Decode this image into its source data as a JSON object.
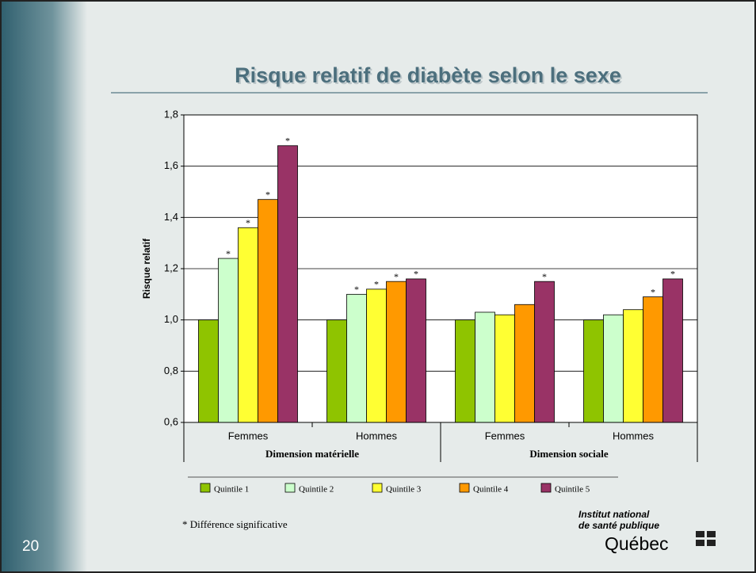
{
  "chart_data": {
    "type": "bar",
    "title": "Risque relatif de diabète selon le sexe",
    "y_label": "Risque relatif",
    "categories": [
      "Femmes",
      "Hommes",
      "Femmes",
      "Hommes"
    ],
    "groups": [
      "Dimension matérielle",
      "Dimension sociale"
    ],
    "series": [
      {
        "name": "Quintile 1",
        "color": "#8fc400",
        "values": [
          1.0,
          1.0,
          1.0,
          1.0
        ],
        "markers": [
          null,
          null,
          null,
          null
        ]
      },
      {
        "name": "Quintile 2",
        "color": "#ccffcc",
        "values": [
          1.24,
          1.1,
          1.03,
          1.02
        ],
        "markers": [
          "*",
          "*",
          null,
          null
        ]
      },
      {
        "name": "Quintile 3",
        "color": "#ffff33",
        "values": [
          1.36,
          1.12,
          1.02,
          1.04
        ],
        "markers": [
          "*",
          "*",
          null,
          null
        ]
      },
      {
        "name": "Quintile 4",
        "color": "#ff9900",
        "values": [
          1.47,
          1.15,
          1.06,
          1.09
        ],
        "markers": [
          "*",
          "*",
          null,
          "*"
        ]
      },
      {
        "name": "Quintile 5",
        "color": "#993366",
        "values": [
          1.68,
          1.16,
          1.15,
          1.16
        ],
        "markers": [
          "*",
          "*",
          "*",
          "*"
        ]
      }
    ],
    "ylim": [
      0.6,
      1.8
    ],
    "yticks": [
      {
        "value": 0.6,
        "label": "0,6"
      },
      {
        "value": 0.8,
        "label": "0,8"
      },
      {
        "value": 1.0,
        "label": "1,0"
      },
      {
        "value": 1.2,
        "label": "1,2"
      },
      {
        "value": 1.4,
        "label": "1,4"
      },
      {
        "value": 1.6,
        "label": "1,6"
      },
      {
        "value": 1.8,
        "label": "1,8"
      }
    ],
    "grid": true,
    "footnote": "* Différence significative"
  },
  "slide": {
    "number": "20",
    "logo": [
      "Institut national",
      "de santé publique",
      "Québec"
    ]
  }
}
